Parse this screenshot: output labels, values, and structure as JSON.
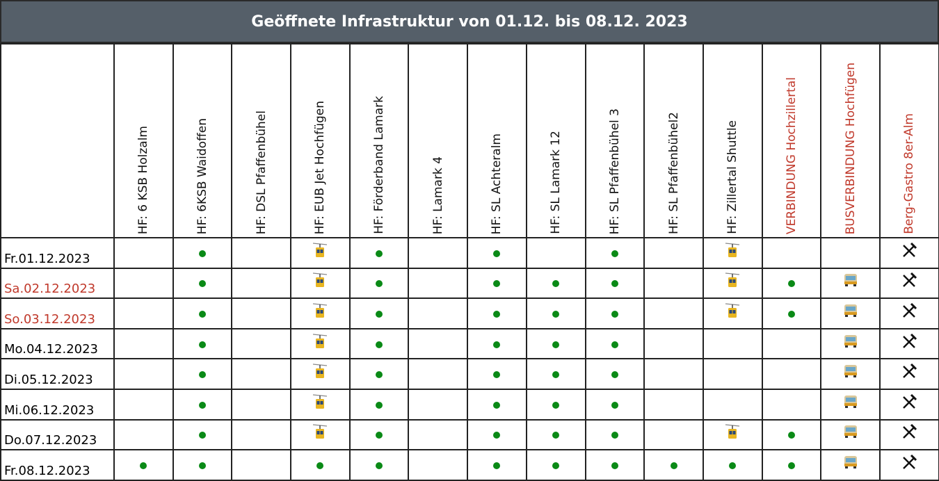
{
  "title": "Geöffnete Infrastruktur von 01.12. bis 08.12. 2023",
  "colors": {
    "header_bg": "#555f69",
    "weekend_red": "#c0392b",
    "open_dot": "#0a8a16"
  },
  "columns": [
    {
      "label": "HF: 6 KSB Holzalm",
      "red": false
    },
    {
      "label": "HF: 6KSB Waidoffen",
      "red": false
    },
    {
      "label": "HF: DSL Pfaffenbühel",
      "red": false
    },
    {
      "label": "HF: EUB Jet Hochfügen",
      "red": false
    },
    {
      "label": "HF: Förderband Lamark",
      "red": false
    },
    {
      "label": "HF: Lamark 4",
      "red": false
    },
    {
      "label": "HF: SL Achteralm",
      "red": false
    },
    {
      "label": "HF: SL Lamark 12",
      "red": false
    },
    {
      "label": "HF: SL Pfaffenbühel 3",
      "red": false
    },
    {
      "label": "HF: SL Pfaffenbühel2",
      "red": false
    },
    {
      "label": "HF: Zillertal Shuttle",
      "red": false
    },
    {
      "label": "VERBINDUNG Hochzillertal",
      "red": true
    },
    {
      "label": "BUSVERBINDUNG Hochfügen",
      "red": true
    },
    {
      "label": "Berg-Gastro 8er-Alm",
      "red": true
    }
  ],
  "rows": [
    {
      "date": "Fr.01.12.2023",
      "red": false,
      "cells": [
        "",
        "dot",
        "",
        "gondola",
        "dot",
        "",
        "dot",
        "",
        "dot",
        "",
        "gondola",
        "",
        "",
        "gastro"
      ]
    },
    {
      "date": "Sa.02.12.2023",
      "red": true,
      "cells": [
        "",
        "dot",
        "",
        "gondola",
        "dot",
        "",
        "dot",
        "dot",
        "dot",
        "",
        "gondola",
        "dot",
        "bus",
        "gastro"
      ]
    },
    {
      "date": "So.03.12.2023",
      "red": true,
      "cells": [
        "",
        "dot",
        "",
        "gondola",
        "dot",
        "",
        "dot",
        "dot",
        "dot",
        "",
        "gondola",
        "dot",
        "bus",
        "gastro"
      ]
    },
    {
      "date": "Mo.04.12.2023",
      "red": false,
      "cells": [
        "",
        "dot",
        "",
        "gondola",
        "dot",
        "",
        "dot",
        "dot",
        "dot",
        "",
        "",
        "",
        "bus",
        "gastro"
      ]
    },
    {
      "date": "Di.05.12.2023",
      "red": false,
      "cells": [
        "",
        "dot",
        "",
        "gondola",
        "dot",
        "",
        "dot",
        "dot",
        "dot",
        "",
        "",
        "",
        "bus",
        "gastro"
      ]
    },
    {
      "date": "Mi.06.12.2023",
      "red": false,
      "cells": [
        "",
        "dot",
        "",
        "gondola",
        "dot",
        "",
        "dot",
        "dot",
        "dot",
        "",
        "",
        "",
        "bus",
        "gastro"
      ]
    },
    {
      "date": "Do.07.12.2023",
      "red": false,
      "cells": [
        "",
        "dot",
        "",
        "gondola",
        "dot",
        "",
        "dot",
        "dot",
        "dot",
        "",
        "gondola",
        "dot",
        "bus",
        "gastro"
      ]
    },
    {
      "date": "Fr.08.12.2023",
      "red": false,
      "cells": [
        "dot",
        "dot",
        "",
        "dot",
        "dot",
        "",
        "dot",
        "dot",
        "dot",
        "dot",
        "dot",
        "dot",
        "bus",
        "gastro"
      ]
    }
  ]
}
